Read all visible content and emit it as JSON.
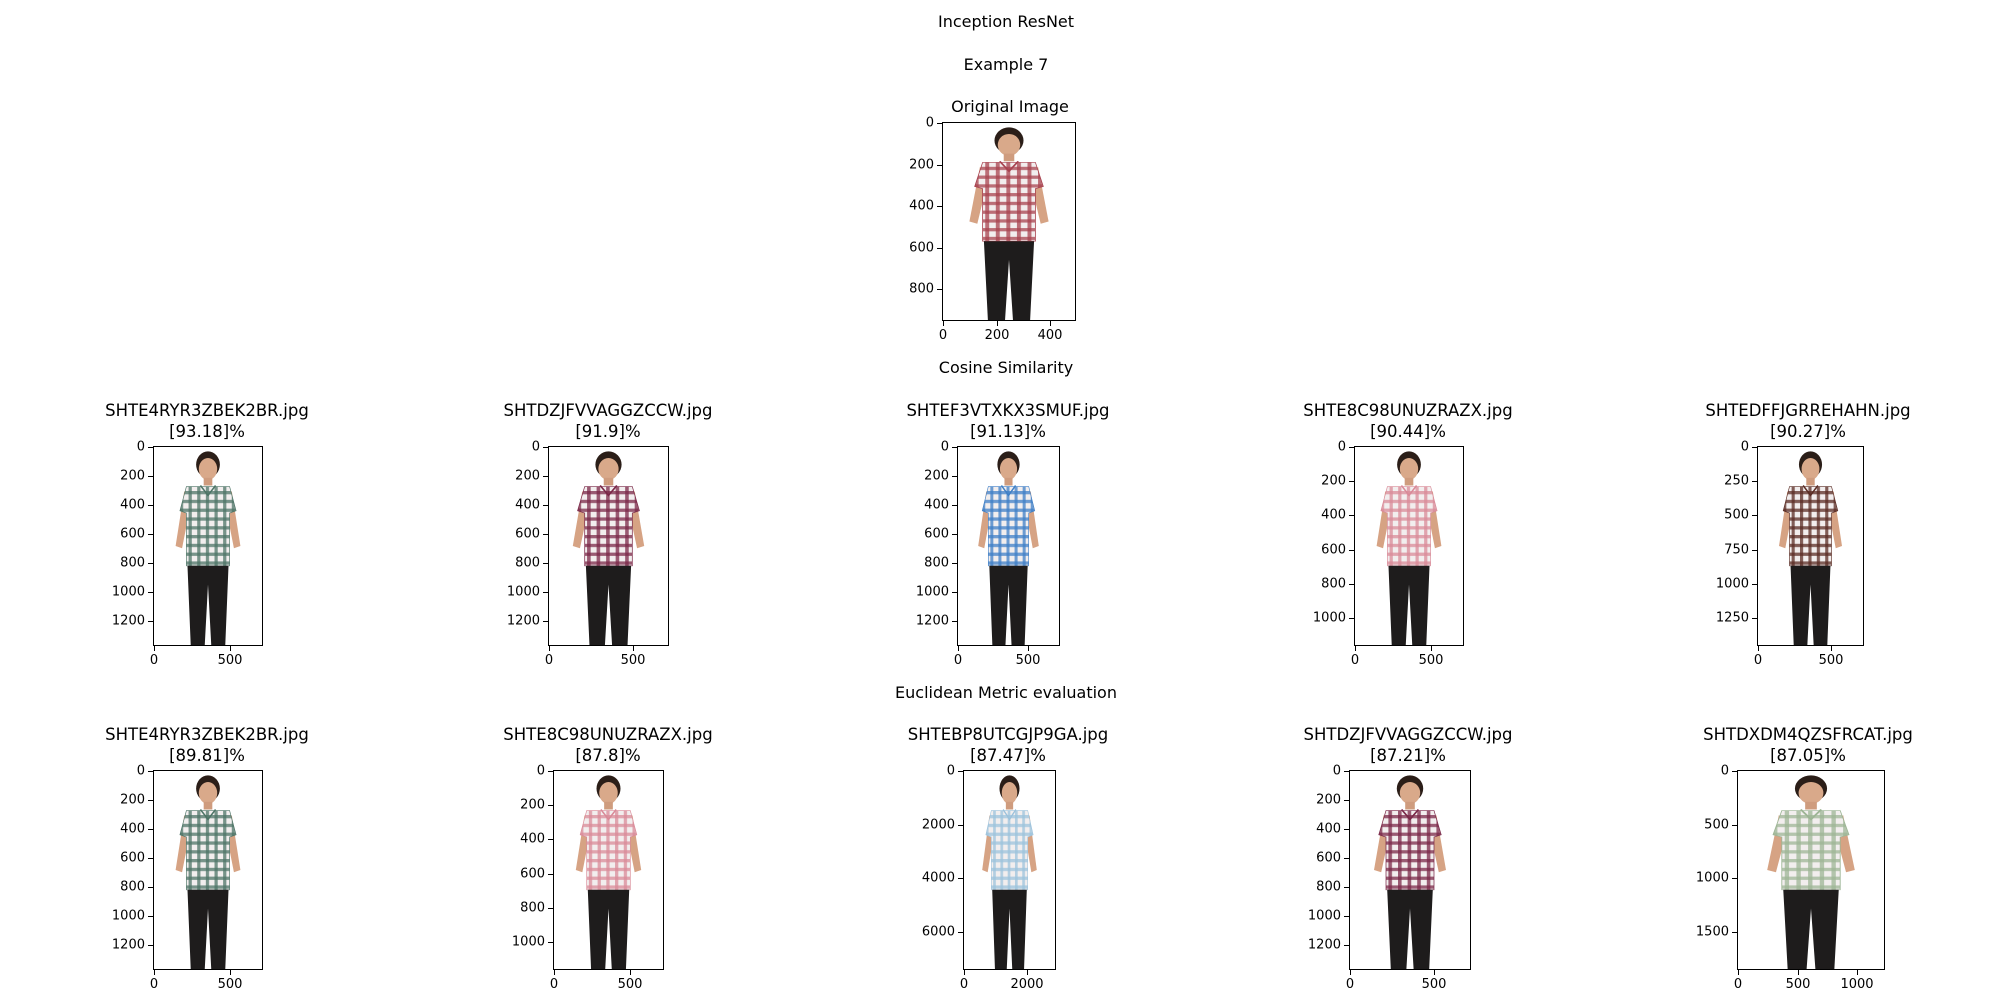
{
  "figure": {
    "title": "Inception ResNet",
    "subtitle": "Example 7",
    "original_title": "Original Image",
    "section_cosine": "Cosine Similarity",
    "section_euclidean": "Euclidean Metric evaluation"
  },
  "original": {
    "shirt": "red-white-check",
    "yticks": [
      "0",
      "200",
      "400",
      "600",
      "800"
    ],
    "xticks": [
      "0",
      "200",
      "400"
    ]
  },
  "cosine": [
    {
      "filename": "SHTE4RYR3ZBEK2BR.jpg",
      "score": "[93.18]%",
      "shirt": "green-check",
      "yticks": [
        "0",
        "200",
        "400",
        "600",
        "800",
        "1000",
        "1200"
      ],
      "xticks": [
        "0",
        "500"
      ]
    },
    {
      "filename": "SHTDZJFVVAGGZCCW.jpg",
      "score": "[91.9]%",
      "shirt": "maroon-check",
      "yticks": [
        "0",
        "200",
        "400",
        "600",
        "800",
        "1000",
        "1200"
      ],
      "xticks": [
        "0",
        "500"
      ]
    },
    {
      "filename": "SHTEF3VTXKX3SMUF.jpg",
      "score": "[91.13]%",
      "shirt": "blue-check",
      "yticks": [
        "0",
        "200",
        "400",
        "600",
        "800",
        "1000",
        "1200"
      ],
      "xticks": [
        "0",
        "500"
      ]
    },
    {
      "filename": "SHTE8C98UNUZRAZX.jpg",
      "score": "[90.44]%",
      "shirt": "pink-check",
      "yticks": [
        "0",
        "200",
        "400",
        "600",
        "800",
        "1000"
      ],
      "xticks": [
        "0",
        "500"
      ]
    },
    {
      "filename": "SHTEDFFJGRREHAHN.jpg",
      "score": "[90.27]%",
      "shirt": "brown-check",
      "yticks": [
        "0",
        "250",
        "500",
        "750",
        "1000",
        "1250"
      ],
      "xticks": [
        "0",
        "500"
      ]
    }
  ],
  "euclidean": [
    {
      "filename": "SHTE4RYR3ZBEK2BR.jpg",
      "score": "[89.81]%",
      "shirt": "green-check",
      "yticks": [
        "0",
        "200",
        "400",
        "600",
        "800",
        "1000",
        "1200"
      ],
      "xticks": [
        "0",
        "500"
      ]
    },
    {
      "filename": "SHTE8C98UNUZRAZX.jpg",
      "score": "[87.8]%",
      "shirt": "pink-check",
      "yticks": [
        "0",
        "200",
        "400",
        "600",
        "800",
        "1000"
      ],
      "xticks": [
        "0",
        "500"
      ]
    },
    {
      "filename": "SHTEBP8UTCGJP9GA.jpg",
      "score": "[87.47]%",
      "shirt": "lightblue-check",
      "yticks": [
        "0",
        "2000",
        "4000",
        "6000"
      ],
      "xticks": [
        "0",
        "2000"
      ]
    },
    {
      "filename": "SHTDZJFVVAGGZCCW.jpg",
      "score": "[87.21]%",
      "shirt": "maroon-check",
      "yticks": [
        "0",
        "200",
        "400",
        "600",
        "800",
        "1000",
        "1200"
      ],
      "xticks": [
        "0",
        "500"
      ]
    },
    {
      "filename": "SHTDXDM4QZSFRCAT.jpg",
      "score": "[87.05]%",
      "shirt": "sage-check",
      "yticks": [
        "0",
        "500",
        "1000",
        "1500"
      ],
      "xticks": [
        "0",
        "500",
        "1000"
      ]
    }
  ],
  "colors": {
    "red-white-check": "#a8424f",
    "green-check": "#4d7466",
    "maroon-check": "#7a2848",
    "blue-check": "#3f7fc6",
    "pink-check": "#d98a98",
    "brown-check": "#5a2c24",
    "lightblue-check": "#9cc2dc",
    "sage-check": "#9db595"
  }
}
